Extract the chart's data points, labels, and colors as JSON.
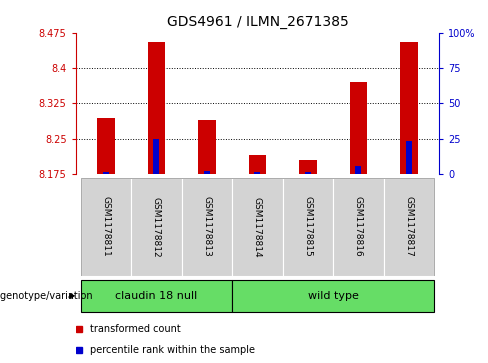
{
  "title": "GDS4961 / ILMN_2671385",
  "samples": [
    "GSM1178811",
    "GSM1178812",
    "GSM1178813",
    "GSM1178814",
    "GSM1178815",
    "GSM1178816",
    "GSM1178817"
  ],
  "red_bar_tops": [
    8.295,
    8.455,
    8.29,
    8.215,
    8.205,
    8.37,
    8.455
  ],
  "blue_marks": [
    8.18,
    8.25,
    8.182,
    8.18,
    8.18,
    8.192,
    8.246
  ],
  "bar_base": 8.175,
  "ylim": [
    8.175,
    8.475
  ],
  "yticks": [
    8.175,
    8.25,
    8.325,
    8.4,
    8.475
  ],
  "right_yticks": [
    0,
    25,
    50,
    75,
    100
  ],
  "right_ylim": [
    0,
    100
  ],
  "groups": [
    {
      "label": "claudin 18 null",
      "indices": [
        0,
        1,
        2
      ],
      "color": "#66DD66"
    },
    {
      "label": "wild type",
      "indices": [
        3,
        4,
        5,
        6
      ],
      "color": "#66DD66"
    }
  ],
  "group_label_prefix": "genotype/variation",
  "red_color": "#CC0000",
  "blue_color": "#0000CC",
  "bar_width": 0.35,
  "blue_bar_width": 0.12,
  "bg_color": "#FFFFFF",
  "tick_label_color_left": "#CC0000",
  "tick_label_color_right": "#0000CC",
  "grid_color": "#000000",
  "cell_bg": "#D3D3D3",
  "legend_red": "transformed count",
  "legend_blue": "percentile rank within the sample"
}
